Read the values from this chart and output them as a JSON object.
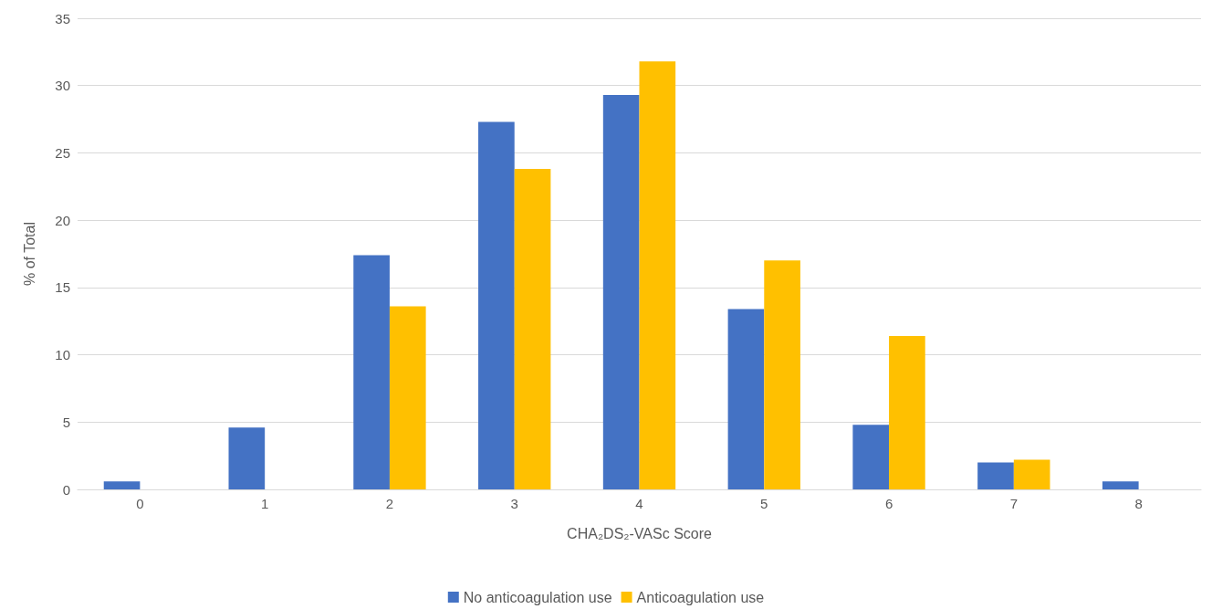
{
  "chart_data": {
    "type": "bar",
    "xlabel": "CHA₂DS₂-VASc Score",
    "ylabel": "% of Total",
    "categories": [
      "0",
      "1",
      "2",
      "3",
      "4",
      "5",
      "6",
      "7",
      "8"
    ],
    "series": [
      {
        "name": "No anticoagulation use",
        "color": "#4472c4",
        "values": [
          0.6,
          4.6,
          17.4,
          27.3,
          29.3,
          13.4,
          4.8,
          2.0,
          0.6
        ]
      },
      {
        "name": "Anticoagulation use",
        "color": "#ffc000",
        "values": [
          0,
          0,
          13.6,
          23.8,
          31.8,
          17.0,
          11.4,
          2.2,
          0
        ]
      }
    ],
    "ylim": [
      0,
      35
    ],
    "yticks": [
      0,
      5,
      10,
      15,
      20,
      25,
      30,
      35
    ],
    "grid": "y",
    "legend": "bottom"
  }
}
